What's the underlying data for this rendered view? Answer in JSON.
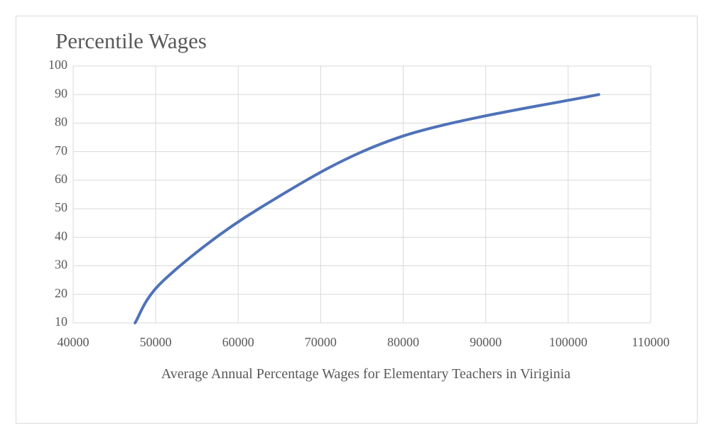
{
  "chart_data": {
    "type": "line",
    "title": "Percentile Wages",
    "x_label": "Average Annual Percentage Wages for Elementary Teachers in Viriginia",
    "x": [
      47500,
      51000,
      62500,
      79500,
      103700
    ],
    "series": [
      {
        "color": "#4f72b8",
        "values": [
          10,
          25,
          50,
          75,
          90
        ]
      }
    ],
    "xlim": [
      40000,
      110000
    ],
    "xticks": [
      40000,
      50000,
      60000,
      70000,
      80000,
      90000,
      100000,
      110000
    ],
    "ylim": [
      10,
      100
    ],
    "yticks": [
      10,
      20,
      30,
      40,
      50,
      60,
      70,
      80,
      90,
      100
    ],
    "grid": true,
    "smooth": true
  }
}
